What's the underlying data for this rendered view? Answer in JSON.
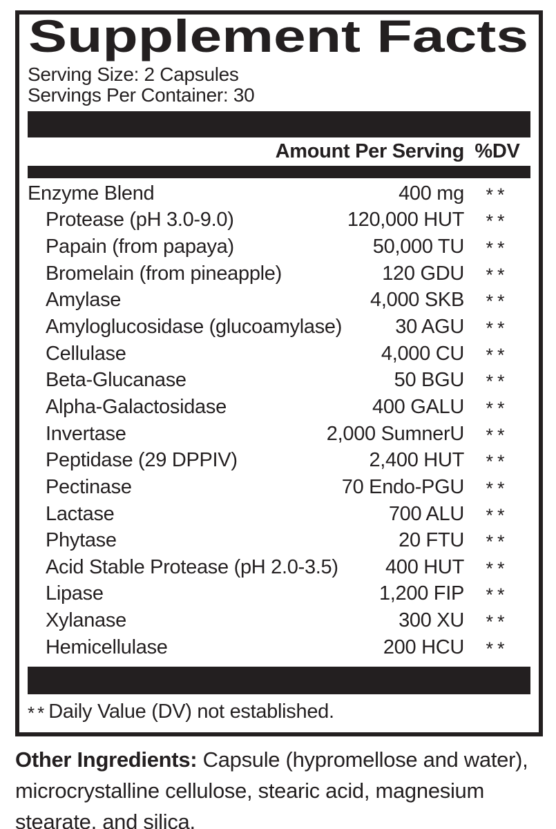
{
  "colors": {
    "ink": "#231f20",
    "paper": "#ffffff"
  },
  "panel": {
    "title": "Supplement Facts",
    "serving_size": "Serving Size: 2 Capsules",
    "servings_per_container": "Servings Per Container: 30",
    "header": {
      "amount": "Amount Per Serving",
      "dv": "%DV"
    },
    "rows": [
      {
        "name": "Enzyme Blend",
        "amount": "400 mg",
        "dv": "**",
        "indent": false
      },
      {
        "name": "Protease (pH 3.0-9.0)",
        "amount": "120,000 HUT",
        "dv": "**",
        "indent": true
      },
      {
        "name": "Papain (from papaya)",
        "amount": "50,000 TU",
        "dv": "**",
        "indent": true
      },
      {
        "name": "Bromelain (from pineapple)",
        "amount": "120 GDU",
        "dv": "**",
        "indent": true
      },
      {
        "name": "Amylase",
        "amount": "4,000 SKB",
        "dv": "**",
        "indent": true
      },
      {
        "name": "Amyloglucosidase (glucoamylase)",
        "amount": "30 AGU",
        "dv": "**",
        "indent": true
      },
      {
        "name": "Cellulase",
        "amount": "4,000 CU",
        "dv": "**",
        "indent": true
      },
      {
        "name": "Beta-Glucanase",
        "amount": "50 BGU",
        "dv": "**",
        "indent": true
      },
      {
        "name": "Alpha-Galactosidase",
        "amount": "400 GALU",
        "dv": "**",
        "indent": true
      },
      {
        "name": "Invertase",
        "amount": "2,000 SumnerU",
        "dv": "**",
        "indent": true
      },
      {
        "name": "Peptidase (29 DPPIV)",
        "amount": "2,400 HUT",
        "dv": "**",
        "indent": true
      },
      {
        "name": "Pectinase",
        "amount": "70 Endo-PGU",
        "dv": "**",
        "indent": true
      },
      {
        "name": "Lactase",
        "amount": "700 ALU",
        "dv": "**",
        "indent": true
      },
      {
        "name": "Phytase",
        "amount": "20 FTU",
        "dv": "**",
        "indent": true
      },
      {
        "name": "Acid Stable Protease (pH 2.0-3.5)",
        "amount": "400 HUT",
        "dv": "**",
        "indent": true
      },
      {
        "name": "Lipase",
        "amount": "1,200 FIP",
        "dv": "**",
        "indent": true
      },
      {
        "name": "Xylanase",
        "amount": "300 XU",
        "dv": "**",
        "indent": true
      },
      {
        "name": "Hemicellulase",
        "amount": "200 HCU",
        "dv": "**",
        "indent": true
      }
    ],
    "footnote": {
      "marker": "**",
      "text": "Daily Value (DV) not established."
    }
  },
  "other_ingredients": {
    "label": "Other Ingredients:",
    "text": " Capsule (hypromellose and water), microcrystalline cellulose, stearic acid, magnesium stearate, and silica."
  }
}
